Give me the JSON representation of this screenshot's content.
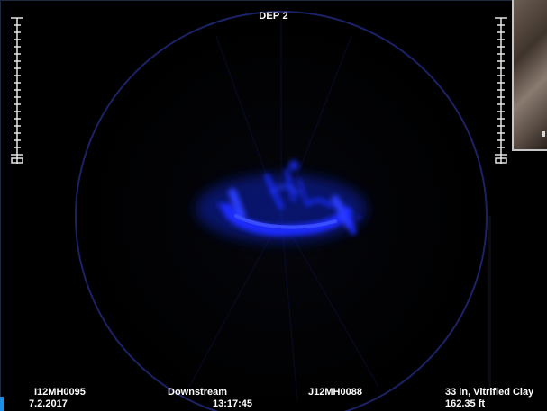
{
  "title": "DEP 2",
  "status_bar": {
    "start_manhole": "I12MH0095",
    "date": "7.2.2017",
    "direction": "Downstream",
    "time": "13:17:45",
    "end_manhole": "J12MH0088",
    "pipe": "33 in, Vitrified Clay",
    "distance": "162.35 ft"
  },
  "colors": {
    "sonar_blue": "#1a2cff",
    "ring": "#1b2266",
    "background": "#000000",
    "text": "#ffffff",
    "scale": "#e6e6e6"
  },
  "icons": {
    "left_scale": "ruler-scale-icon",
    "right_scale": "ruler-scale-icon",
    "thumbnail": "camera-thumbnail"
  }
}
